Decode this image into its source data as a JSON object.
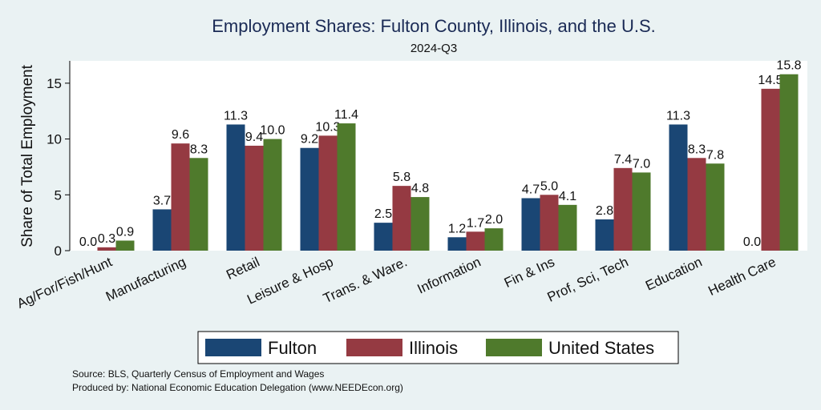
{
  "chart_data": {
    "type": "bar",
    "title": "Employment Shares: Fulton County, Illinois, and the U.S.",
    "subtitle": "2024-Q3",
    "xlabel": "",
    "ylabel": "Share of Total Employment",
    "ylim": [
      0,
      17
    ],
    "yticks": [
      0,
      5,
      10,
      15
    ],
    "grid": false,
    "legend_position": "bottom",
    "categories": [
      "Ag/For/Fish/Hunt",
      "Manufacturing",
      "Retail",
      "Leisure & Hosp",
      "Trans. & Ware.",
      "Information",
      "Fin & Ins",
      "Prof, Sci, Tech",
      "Education",
      "Health Care"
    ],
    "series": [
      {
        "name": "Fulton",
        "color": "#1a4674",
        "values": [
          0.0,
          3.7,
          11.3,
          9.2,
          2.5,
          1.2,
          4.7,
          2.8,
          11.3,
          0.0
        ]
      },
      {
        "name": "Illinois",
        "color": "#953a42",
        "values": [
          0.3,
          9.6,
          9.4,
          10.3,
          5.8,
          1.7,
          5.0,
          7.4,
          8.3,
          14.5
        ]
      },
      {
        "name": "United States",
        "color": "#4f7a2c",
        "values": [
          0.9,
          8.3,
          10.0,
          11.4,
          4.8,
          2.0,
          4.1,
          7.0,
          7.8,
          15.8
        ]
      }
    ],
    "notes": [
      "Source: BLS, Quarterly Census of Employment and Wages",
      "Produced by: National Economic Education Delegation (www.NEEDEcon.org)"
    ]
  }
}
